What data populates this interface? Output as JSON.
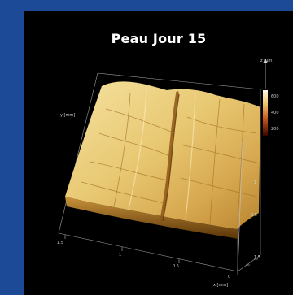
{
  "title": "Peau Jour 15",
  "axes": {
    "x_label": "x [mm]",
    "y_label": "y [mm]",
    "z_label": "z [µm]",
    "x_ticks": [
      "1.5",
      "1",
      "0.5",
      "0"
    ],
    "y_ticks": [
      "0.5",
      "1",
      "1.5"
    ],
    "colorbar_ticks": [
      "600",
      "400",
      "200"
    ]
  },
  "colors": {
    "background": "#1d4a97",
    "panel": "#000000",
    "surface_light": "#f2dc93",
    "surface_dark": "#a66a1c"
  }
}
